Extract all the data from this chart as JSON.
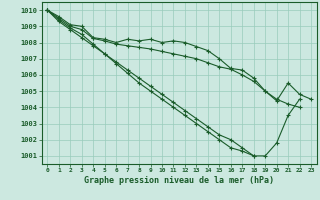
{
  "xlabel": "Graphe pression niveau de la mer (hPa)",
  "bg_color": "#cce8e0",
  "grid_color": "#99ccbb",
  "line_color": "#1a5c2a",
  "ylim": [
    1000.5,
    1010.5
  ],
  "xlim": [
    -0.5,
    23.5
  ],
  "yticks": [
    1001,
    1002,
    1003,
    1004,
    1005,
    1006,
    1007,
    1008,
    1009,
    1010
  ],
  "xticks": [
    0,
    1,
    2,
    3,
    4,
    5,
    6,
    7,
    8,
    9,
    10,
    11,
    12,
    13,
    14,
    15,
    16,
    17,
    18,
    19,
    20,
    21,
    22,
    23
  ],
  "series": [
    [
      1010,
      1009.6,
      1009.1,
      1009.0,
      1008.3,
      1008.2,
      1008.0,
      1008.2,
      1008.1,
      1008.2,
      1008.0,
      1008.1,
      1008.0,
      1007.75,
      1007.5,
      1007.0,
      1006.4,
      1006.3,
      1005.8,
      1005.0,
      1004.4,
      1005.5,
      1004.8,
      1004.5
    ],
    [
      1010,
      1009.5,
      1009.0,
      1008.8,
      1008.25,
      1008.1,
      1007.9,
      1007.8,
      1007.7,
      1007.6,
      1007.45,
      1007.3,
      1007.15,
      1007.0,
      1006.75,
      1006.5,
      1006.35,
      1006.0,
      1005.6,
      1005.0,
      1004.5,
      1004.2,
      1004.0,
      null
    ],
    [
      1010,
      1009.4,
      1008.9,
      1008.5,
      1007.9,
      1007.3,
      1006.8,
      1006.3,
      1005.8,
      1005.3,
      1004.8,
      1004.3,
      1003.8,
      1003.3,
      1002.8,
      1002.3,
      1002.0,
      1001.5,
      1001.0,
      1001.0,
      1001.8,
      1003.5,
      1004.5,
      null
    ],
    [
      1010,
      1009.3,
      1008.8,
      1008.3,
      1007.8,
      1007.3,
      1006.7,
      1006.1,
      1005.5,
      1005.0,
      1004.5,
      1004.0,
      1003.5,
      1003.0,
      1002.5,
      1002.0,
      1001.5,
      1001.3,
      1001.0,
      null,
      null,
      null,
      null,
      null
    ]
  ]
}
